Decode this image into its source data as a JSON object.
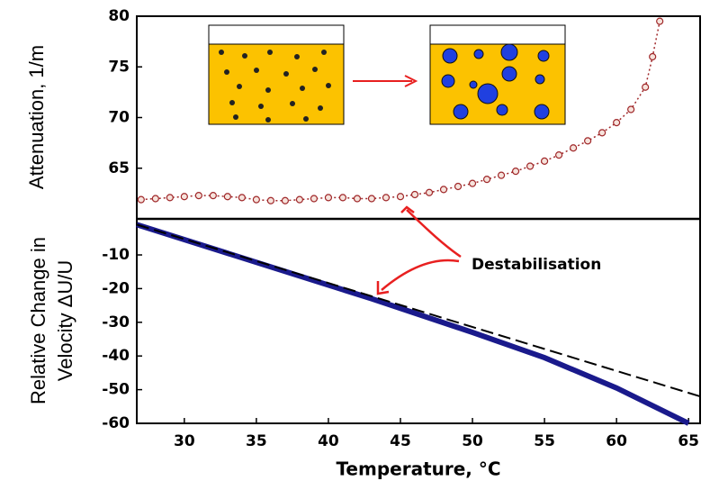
{
  "chart_data": [
    {
      "type": "line",
      "ylabel": "Attenuation, 1/m",
      "x": [
        27,
        28,
        29,
        30,
        31,
        32,
        33,
        34,
        35,
        36,
        37,
        38,
        39,
        40,
        41,
        42,
        43,
        44,
        45,
        46,
        47,
        48,
        49,
        50,
        51,
        52,
        53,
        54,
        55,
        56,
        57,
        58,
        59,
        60,
        61,
        62,
        62.5,
        63
      ],
      "xlim": [
        26.7,
        65.8
      ],
      "ylim": [
        60,
        80
      ],
      "yticks": [
        65,
        70,
        75,
        80
      ],
      "series": [
        {
          "color": "#a0282a",
          "marker": true,
          "line_style": "dotted",
          "values": [
            61.9,
            62.0,
            62.1,
            62.2,
            62.3,
            62.3,
            62.2,
            62.1,
            61.9,
            61.8,
            61.8,
            61.9,
            62.0,
            62.1,
            62.1,
            62.0,
            62.0,
            62.1,
            62.2,
            62.4,
            62.6,
            62.9,
            63.2,
            63.5,
            63.9,
            64.3,
            64.7,
            65.2,
            65.7,
            66.3,
            67.0,
            67.7,
            68.5,
            69.5,
            70.8,
            73.0,
            76.0,
            79.5
          ]
        }
      ],
      "annotation": "Destabilisation"
    },
    {
      "type": "line",
      "ylabel_lines": [
        "Relative Change in",
        "Velocity ΔU/U"
      ],
      "xlabel": "Temperature, °C",
      "xlim": [
        26.7,
        65.8
      ],
      "ylim": [
        -60,
        0.7
      ],
      "xticks": [
        30,
        35,
        40,
        45,
        50,
        55,
        60,
        65
      ],
      "yticks": [
        -10,
        -20,
        -30,
        -40,
        -50,
        -60
      ],
      "series": [
        {
          "color": "#1a1a8c",
          "line_style": "solid",
          "width": 6,
          "x": [
            26.7,
            43,
            50,
            55,
            60,
            65
          ],
          "values": [
            -1,
            -23,
            -33,
            -40.5,
            -49.5,
            -60
          ]
        },
        {
          "color": "#000000",
          "line_style": "dashed",
          "width": 2,
          "x": [
            26.7,
            65.8
          ],
          "values": [
            -1,
            -52
          ]
        }
      ]
    }
  ]
}
